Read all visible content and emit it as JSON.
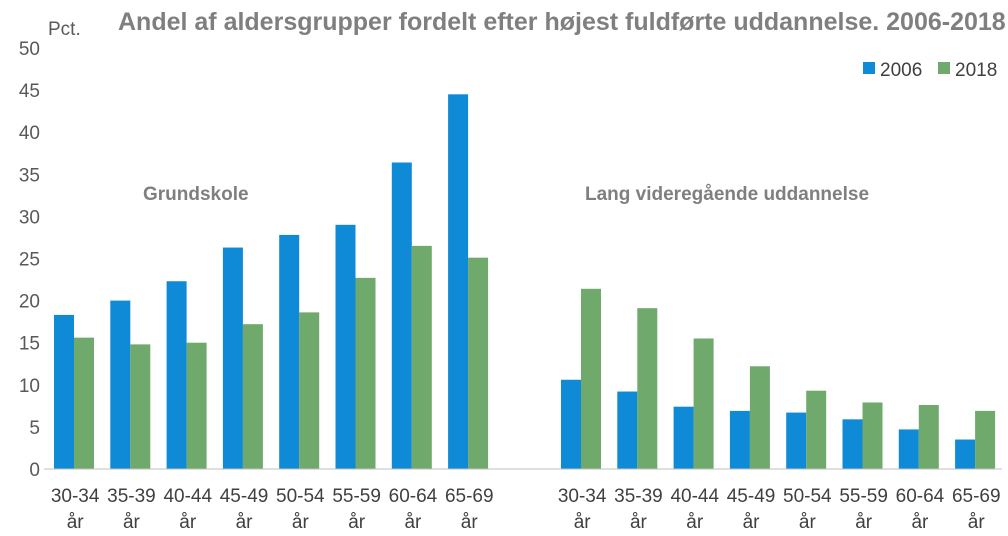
{
  "chart_data": {
    "type": "bar",
    "title": "Andel af aldersgrupper fordelt efter højest fuldførte uddannelse. 2006-2018",
    "ylabel": "Pct.",
    "ylim": [
      0,
      50
    ],
    "yticks": [
      0,
      5,
      10,
      15,
      20,
      25,
      30,
      35,
      40,
      45,
      50
    ],
    "grid": false,
    "legend_position": "top-right",
    "colors": {
      "2006": "#0f8ad6",
      "2018": "#6fa96b"
    },
    "groups": [
      {
        "label": "Grundskole",
        "categories": [
          [
            "30-34",
            "år"
          ],
          [
            "35-39",
            "år"
          ],
          [
            "40-44",
            "år"
          ],
          [
            "45-49",
            "år"
          ],
          [
            "50-54",
            "år"
          ],
          [
            "55-59",
            "år"
          ],
          [
            "60-64",
            "år"
          ],
          [
            "65-69",
            "år"
          ]
        ],
        "series": [
          {
            "name": "2006",
            "values": [
              18.3,
              20.0,
              22.3,
              26.3,
              27.8,
              29.0,
              36.4,
              44.5
            ]
          },
          {
            "name": "2018",
            "values": [
              15.6,
              14.8,
              15.0,
              17.2,
              18.6,
              22.7,
              26.5,
              25.1
            ]
          }
        ]
      },
      {
        "label": "Lang videregående uddannelse",
        "categories": [
          [
            "30-34",
            "år"
          ],
          [
            "35-39",
            "år"
          ],
          [
            "40-44",
            "år"
          ],
          [
            "45-49",
            "år"
          ],
          [
            "50-54",
            "år"
          ],
          [
            "55-59",
            "år"
          ],
          [
            "60-64",
            "år"
          ],
          [
            "65-69",
            "år"
          ]
        ],
        "series": [
          {
            "name": "2006",
            "values": [
              10.6,
              9.2,
              7.4,
              6.9,
              6.7,
              5.9,
              4.7,
              3.5
            ]
          },
          {
            "name": "2018",
            "values": [
              21.4,
              19.1,
              15.5,
              12.2,
              9.3,
              7.9,
              7.6,
              6.9
            ]
          }
        ]
      }
    ]
  }
}
